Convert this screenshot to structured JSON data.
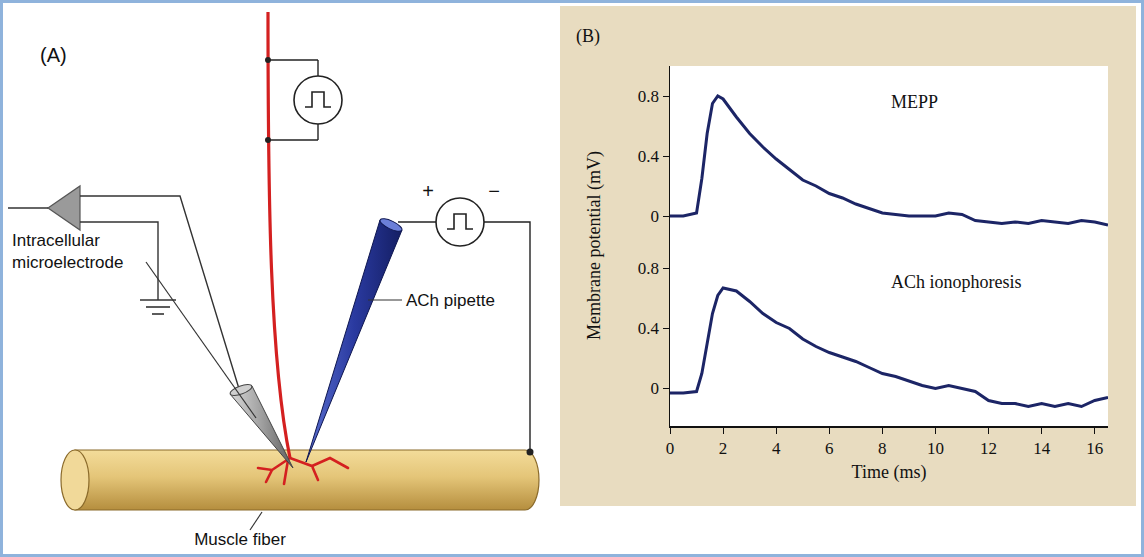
{
  "panel_a": {
    "letter": "(A)",
    "electrode_label": "Intracellular microelectrode",
    "pipette_label": "ACh pipette",
    "fiber_label": "Muscle fiber",
    "pipette_polarity": [
      "+",
      "−"
    ]
  },
  "panel_b": {
    "letter": "(B)",
    "x_label": "Time (ms)",
    "y_label": "Membrane potential (mV)"
  },
  "chart_data": [
    {
      "type": "line",
      "title": "MEPP",
      "color": "#1c2566",
      "tick_labels": "y",
      "xlim": [
        0,
        16.5
      ],
      "ylim": [
        -0.2,
        1.0
      ],
      "yticks": [
        0,
        0.4,
        0.8
      ],
      "x": [
        0,
        0.5,
        1.0,
        1.2,
        1.4,
        1.6,
        1.8,
        2.0,
        2.5,
        3,
        3.5,
        4,
        4.5,
        5,
        5.5,
        6,
        6.5,
        7,
        7.5,
        8,
        8.5,
        9,
        9.5,
        10,
        10.5,
        11,
        11.5,
        12,
        12.5,
        13,
        13.5,
        14,
        14.5,
        15,
        15.5,
        16,
        16.5
      ],
      "values": [
        0,
        0,
        0.02,
        0.25,
        0.55,
        0.75,
        0.8,
        0.78,
        0.66,
        0.55,
        0.46,
        0.38,
        0.31,
        0.24,
        0.2,
        0.15,
        0.12,
        0.08,
        0.05,
        0.02,
        0.01,
        0,
        0,
        0,
        0.02,
        0.01,
        -0.03,
        -0.04,
        -0.05,
        -0.04,
        -0.05,
        -0.03,
        -0.04,
        -0.05,
        -0.03,
        -0.04,
        -0.06
      ]
    },
    {
      "type": "line",
      "title": "ACh ionophoresis",
      "color": "#1c2566",
      "xlim": [
        0,
        16.5
      ],
      "xticks": [
        0,
        2,
        4,
        6,
        8,
        10,
        12,
        14,
        16
      ],
      "ylim": [
        -0.25,
        0.95
      ],
      "yticks": [
        0,
        0.4,
        0.8
      ],
      "x": [
        0,
        0.5,
        1.0,
        1.2,
        1.4,
        1.6,
        1.8,
        2.0,
        2.5,
        3,
        3.5,
        4,
        4.5,
        5,
        5.5,
        6,
        6.5,
        7,
        7.5,
        8,
        8.5,
        9,
        9.5,
        10,
        10.5,
        11,
        11.5,
        12,
        12.5,
        13,
        13.5,
        14,
        14.5,
        15,
        15.5,
        16,
        16.5
      ],
      "values": [
        -0.03,
        -0.03,
        -0.02,
        0.1,
        0.3,
        0.5,
        0.62,
        0.67,
        0.65,
        0.58,
        0.5,
        0.44,
        0.4,
        0.33,
        0.28,
        0.24,
        0.21,
        0.18,
        0.14,
        0.1,
        0.08,
        0.05,
        0.02,
        0,
        0.02,
        0,
        -0.02,
        -0.08,
        -0.1,
        -0.1,
        -0.12,
        -0.1,
        -0.12,
        -0.1,
        -0.12,
        -0.08,
        -0.06
      ]
    }
  ]
}
